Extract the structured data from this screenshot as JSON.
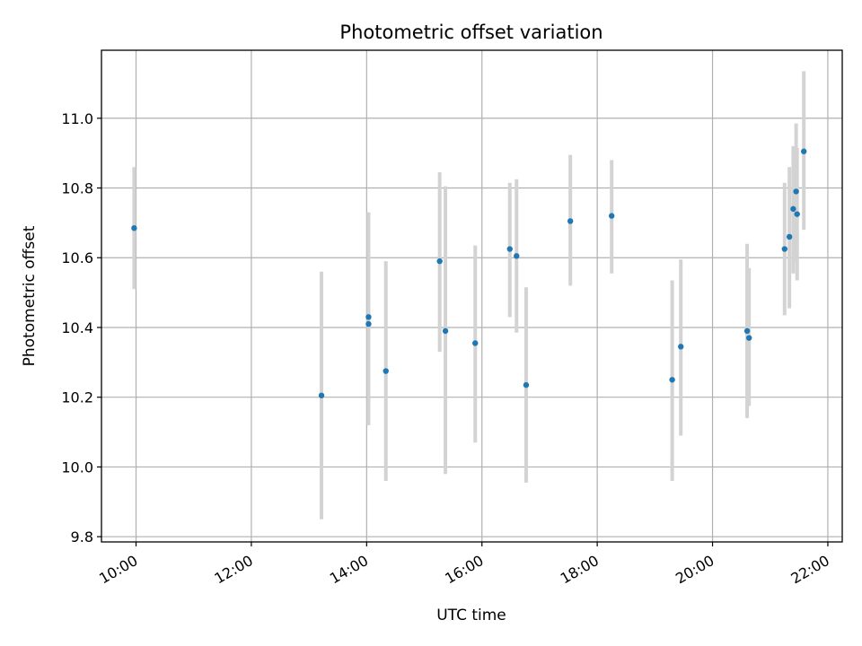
{
  "chart_data": {
    "type": "scatter",
    "title": "Photometric offset variation",
    "xlabel": "UTC time",
    "ylabel": "Photometric offset",
    "x_axis": "time",
    "xlim": [
      "09:24",
      "22:15"
    ],
    "ylim": [
      9.785,
      11.195
    ],
    "xticks": [
      "10:00",
      "12:00",
      "14:00",
      "16:00",
      "18:00",
      "20:00",
      "22:00"
    ],
    "yticks": [
      9.8,
      10.0,
      10.2,
      10.4,
      10.6,
      10.8,
      11.0
    ],
    "ytick_labels": [
      "9.8",
      "10.0",
      "10.2",
      "10.4",
      "10.6",
      "10.8",
      "11.0"
    ],
    "grid": true,
    "marker_color": "#1f77b4",
    "errorbar_color": "#d3d3d3",
    "points": [
      {
        "x": "09:58",
        "y": 10.685,
        "low": 10.51,
        "high": 10.86
      },
      {
        "x": "13:13",
        "y": 10.205,
        "low": 9.85,
        "high": 10.56
      },
      {
        "x": "14:02",
        "y": 10.43,
        "low": 10.12,
        "high": 10.73
      },
      {
        "x": "14:02",
        "y": 10.41,
        "low": 10.12,
        "high": 10.73
      },
      {
        "x": "14:20",
        "y": 10.275,
        "low": 9.96,
        "high": 10.59
      },
      {
        "x": "15:16",
        "y": 10.59,
        "low": 10.33,
        "high": 10.845
      },
      {
        "x": "15:22",
        "y": 10.39,
        "low": 9.98,
        "high": 10.805
      },
      {
        "x": "15:53",
        "y": 10.355,
        "low": 10.07,
        "high": 10.635
      },
      {
        "x": "16:29",
        "y": 10.625,
        "low": 10.43,
        "high": 10.815
      },
      {
        "x": "16:36",
        "y": 10.605,
        "low": 10.385,
        "high": 10.825
      },
      {
        "x": "16:46",
        "y": 10.235,
        "low": 9.955,
        "high": 10.515
      },
      {
        "x": "17:32",
        "y": 10.705,
        "low": 10.52,
        "high": 10.895
      },
      {
        "x": "18:15",
        "y": 10.72,
        "low": 10.555,
        "high": 10.88
      },
      {
        "x": "19:18",
        "y": 10.25,
        "low": 9.96,
        "high": 10.535
      },
      {
        "x": "19:27",
        "y": 10.345,
        "low": 10.09,
        "high": 10.595
      },
      {
        "x": "20:36",
        "y": 10.39,
        "low": 10.14,
        "high": 10.64
      },
      {
        "x": "20:38",
        "y": 10.37,
        "low": 10.175,
        "high": 10.57
      },
      {
        "x": "21:15",
        "y": 10.625,
        "low": 10.435,
        "high": 10.815
      },
      {
        "x": "21:20",
        "y": 10.66,
        "low": 10.455,
        "high": 10.86
      },
      {
        "x": "21:24",
        "y": 10.74,
        "low": 10.555,
        "high": 10.92
      },
      {
        "x": "21:27",
        "y": 10.79,
        "low": 10.59,
        "high": 10.985
      },
      {
        "x": "21:28",
        "y": 10.725,
        "low": 10.535,
        "high": 10.915
      },
      {
        "x": "21:35",
        "y": 10.905,
        "low": 10.68,
        "high": 11.135
      }
    ]
  }
}
